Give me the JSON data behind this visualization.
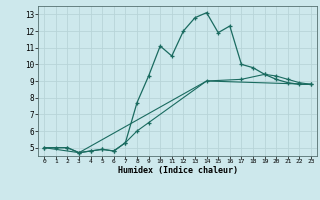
{
  "title": "",
  "xlabel": "Humidex (Indice chaleur)",
  "bg_color": "#cde8ec",
  "grid_color": "#b8d4d8",
  "line_color": "#1a6b60",
  "xlim": [
    -0.5,
    23.5
  ],
  "ylim": [
    4.5,
    13.5
  ],
  "xticks": [
    0,
    1,
    2,
    3,
    4,
    5,
    6,
    7,
    8,
    9,
    10,
    11,
    12,
    13,
    14,
    15,
    16,
    17,
    18,
    19,
    20,
    21,
    22,
    23
  ],
  "yticks": [
    5,
    6,
    7,
    8,
    9,
    10,
    11,
    12,
    13
  ],
  "line1_x": [
    0,
    1,
    2,
    3,
    4,
    5,
    6,
    7,
    8,
    9,
    10,
    11,
    12,
    13,
    14,
    15,
    16,
    17,
    18,
    19,
    20,
    21,
    22,
    23
  ],
  "line1_y": [
    5.0,
    5.0,
    5.0,
    4.7,
    4.8,
    4.9,
    4.8,
    5.3,
    7.7,
    9.3,
    11.1,
    10.5,
    12.0,
    12.8,
    13.1,
    11.9,
    12.3,
    10.0,
    9.8,
    9.4,
    9.1,
    8.9,
    8.8,
    8.8
  ],
  "line2_x": [
    0,
    2,
    3,
    4,
    5,
    6,
    7,
    8,
    9,
    14,
    17,
    19,
    20,
    21,
    22,
    23
  ],
  "line2_y": [
    5.0,
    5.0,
    4.7,
    4.8,
    4.9,
    4.8,
    5.3,
    6.0,
    6.5,
    9.0,
    9.1,
    9.4,
    9.3,
    9.1,
    8.9,
    8.8
  ],
  "line3_x": [
    0,
    3,
    14,
    23
  ],
  "line3_y": [
    5.0,
    4.7,
    9.0,
    8.8
  ]
}
